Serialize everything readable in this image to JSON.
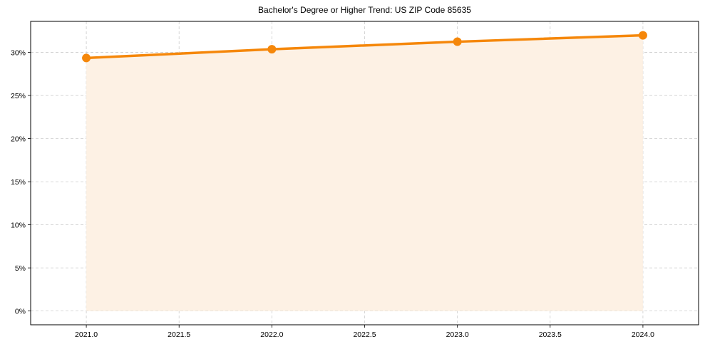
{
  "chart_data": {
    "type": "line",
    "title": "Bachelor's Degree or Higher Trend: US ZIP Code 85635",
    "xlabel": "",
    "ylabel": "",
    "x": [
      2021,
      2022,
      2023,
      2024
    ],
    "series": [
      {
        "name": "Bachelor's Degree or Higher",
        "values": [
          29.35,
          30.37,
          31.24,
          31.98
        ],
        "color": "#f5870a",
        "fill": "#fdf1e4",
        "marker": "circle"
      }
    ],
    "xlim": [
      2020.7,
      2024.3
    ],
    "ylim": [
      -1.6,
      33.6
    ],
    "xticks": [
      2021.0,
      2021.5,
      2022.0,
      2022.5,
      2023.0,
      2023.5,
      2024.0
    ],
    "xtick_labels": [
      "2021.0",
      "2021.5",
      "2022.0",
      "2022.5",
      "2023.0",
      "2023.5",
      "2024.0"
    ],
    "yticks": [
      0,
      5,
      10,
      15,
      20,
      25,
      30
    ],
    "ytick_labels": [
      "0%",
      "5%",
      "10%",
      "15%",
      "20%",
      "25%",
      "30%"
    ],
    "grid": true,
    "grid_style": "dashed",
    "legend": false
  }
}
